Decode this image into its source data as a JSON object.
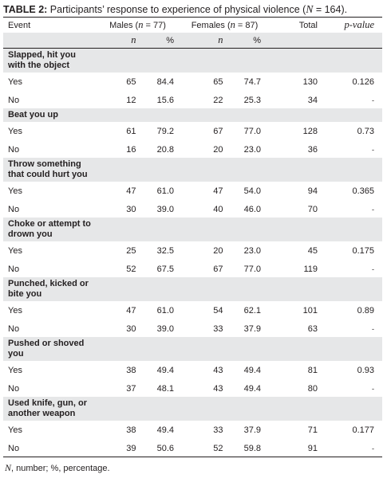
{
  "caption": {
    "label": "TABLE 2:",
    "text_before": " Participants’ response to experience of physical violence (",
    "n_symbol": "N",
    "text_after": " = 164)."
  },
  "headers": {
    "event": "Event",
    "males": "Males (",
    "males_n": "n",
    "males_rest": " = 77)",
    "females": "Females (",
    "females_n": "n",
    "females_rest": " = 87)",
    "total": "Total",
    "pvalue": "p-value",
    "n_label": "n",
    "pct_label": "%"
  },
  "rows": [
    {
      "event": "Slapped, hit you with the object",
      "yes": {
        "label": "Yes",
        "m_n": "65",
        "m_p": "84.4",
        "f_n": "65",
        "f_p": "74.7",
        "total": "130",
        "p": "0.126"
      },
      "no": {
        "label": "No",
        "m_n": "12",
        "m_p": "15.6",
        "f_n": "22",
        "f_p": "25.3",
        "total": "34",
        "p": "-"
      }
    },
    {
      "event": "Beat you up",
      "yes": {
        "label": "Yes",
        "m_n": "61",
        "m_p": "79.2",
        "f_n": "67",
        "f_p": "77.0",
        "total": "128",
        "p": "0.73"
      },
      "no": {
        "label": "No",
        "m_n": "16",
        "m_p": "20.8",
        "f_n": "20",
        "f_p": "23.0",
        "total": "36",
        "p": "-"
      }
    },
    {
      "event": "Throw something that could hurt you",
      "yes": {
        "label": "Yes",
        "m_n": "47",
        "m_p": "61.0",
        "f_n": "47",
        "f_p": "54.0",
        "total": "94",
        "p": "0.365"
      },
      "no": {
        "label": "No",
        "m_n": "30",
        "m_p": "39.0",
        "f_n": "40",
        "f_p": "46.0",
        "total": "70",
        "p": "-"
      }
    },
    {
      "event": "Choke or attempt to drown you",
      "yes": {
        "label": "Yes",
        "m_n": "25",
        "m_p": "32.5",
        "f_n": "20",
        "f_p": "23.0",
        "total": "45",
        "p": "0.175"
      },
      "no": {
        "label": "No",
        "m_n": "52",
        "m_p": "67.5",
        "f_n": "67",
        "f_p": "77.0",
        "total": "119",
        "p": "-"
      }
    },
    {
      "event": "Punched, kicked or bite you",
      "yes": {
        "label": "Yes",
        "m_n": "47",
        "m_p": "61.0",
        "f_n": "54",
        "f_p": "62.1",
        "total": "101",
        "p": "0.89"
      },
      "no": {
        "label": "No",
        "m_n": "30",
        "m_p": "39.0",
        "f_n": "33",
        "f_p": "37.9",
        "total": "63",
        "p": "-"
      }
    },
    {
      "event": "Pushed or shoved you",
      "yes": {
        "label": "Yes",
        "m_n": "38",
        "m_p": "49.4",
        "f_n": "43",
        "f_p": "49.4",
        "total": "81",
        "p": "0.93"
      },
      "no": {
        "label": "No",
        "m_n": "37",
        "m_p": "48.1",
        "f_n": "43",
        "f_p": "49.4",
        "total": "80",
        "p": "-"
      }
    },
    {
      "event": "Used knife, gun, or another weapon",
      "yes": {
        "label": "Yes",
        "m_n": "38",
        "m_p": "49.4",
        "f_n": "33",
        "f_p": "37.9",
        "total": "71",
        "p": "0.177"
      },
      "no": {
        "label": "No",
        "m_n": "39",
        "m_p": "50.6",
        "f_n": "52",
        "f_p": "59.8",
        "total": "91",
        "p": "-"
      }
    }
  ],
  "footnote": {
    "n_symbol": "N",
    "text": ", number; %, percentage."
  }
}
